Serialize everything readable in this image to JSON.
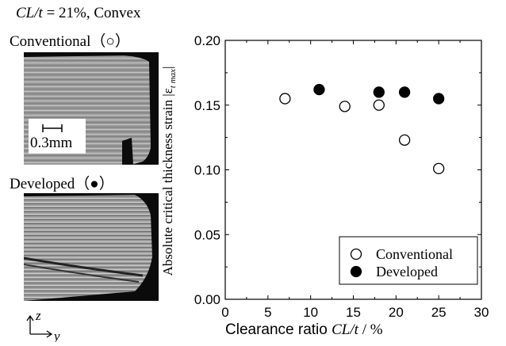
{
  "figure": {
    "title_italic": "CL/t",
    "title_rest": " = 21%, Convex",
    "conventional_label": "Conventional（○）",
    "developed_label": "Developed（●）",
    "scale_bar_label": "0.3mm",
    "axis_z": "z",
    "axis_y": "y"
  },
  "chart_data": {
    "type": "scatter",
    "xlabel_prefix": "Clearance ratio ",
    "xlabel_italic": "CL/t",
    "xlabel_suffix": "  / %",
    "ylabel": "Absolute critical thickness strain",
    "ylabel_symbol": "|ε",
    "ylabel_subscript": "t max",
    "ylabel_close": "|",
    "xlim": [
      0,
      30
    ],
    "ylim": [
      0.0,
      0.2
    ],
    "xticks": [
      "0",
      "5",
      "10",
      "15",
      "20",
      "25",
      "30"
    ],
    "yticks": [
      "0.00",
      "0.05",
      "0.10",
      "0.15",
      "0.20"
    ],
    "grid": false,
    "legend_position": "bottom-right",
    "series": [
      {
        "name": "Conventional",
        "marker": "open-circle",
        "x": [
          7,
          14,
          18,
          21,
          25
        ],
        "y": [
          0.155,
          0.149,
          0.15,
          0.123,
          0.101
        ]
      },
      {
        "name": "Developed",
        "marker": "filled-circle",
        "x": [
          11,
          18,
          21,
          25
        ],
        "y": [
          0.162,
          0.16,
          0.16,
          0.155
        ]
      }
    ]
  }
}
